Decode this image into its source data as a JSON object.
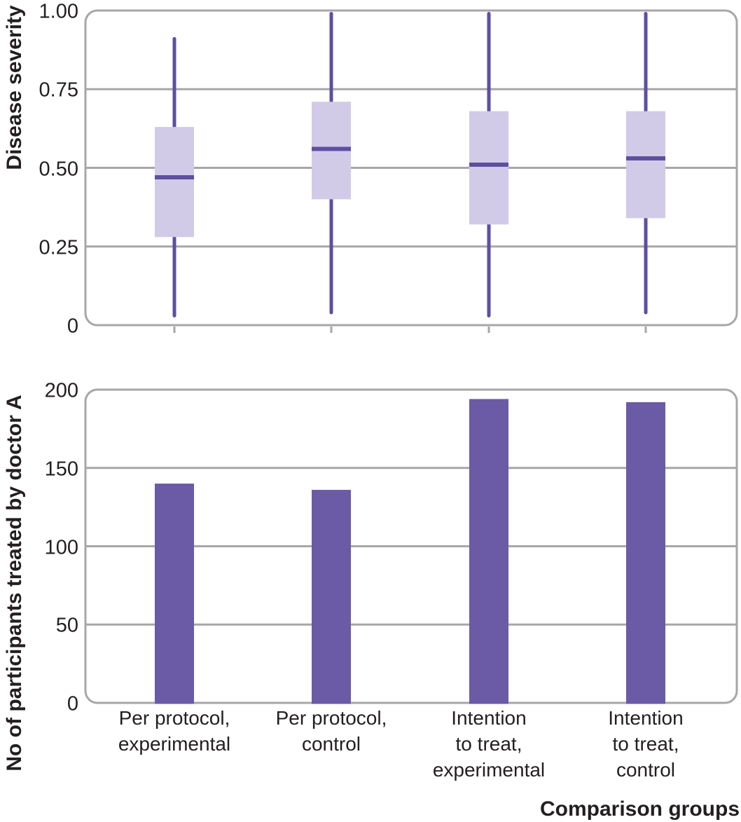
{
  "figure": {
    "x_axis_title": "Comparison groups",
    "colors": {
      "box_fill": "#d1cbe7",
      "box_line": "#5e4fa1",
      "bar_fill": "#6b5aa6",
      "grid": "#a8a6a9",
      "text": "#231f20"
    },
    "category_lines": [
      [
        "Per protocol,",
        "experimental"
      ],
      [
        "Per protocol,",
        "control"
      ],
      [
        "Intention",
        "to treat,",
        "experimental"
      ],
      [
        "Intention",
        "to treat,",
        "control"
      ]
    ]
  },
  "chart_data": [
    {
      "type": "boxplot",
      "title": "",
      "ylabel": "Disease severity",
      "xlabel": "",
      "ylim": [
        0,
        1
      ],
      "yticks": [
        0,
        0.25,
        0.5,
        0.75,
        1
      ],
      "ytick_labels": [
        "0",
        "0.25",
        "0.50",
        "0.75",
        "1.00"
      ],
      "grid": true,
      "legend": false,
      "categories": [
        "Per protocol, experimental",
        "Per protocol, control",
        "Intention to treat, experimental",
        "Intention to treat, control"
      ],
      "boxes": [
        {
          "whisker_low": 0.03,
          "q1": 0.28,
          "median": 0.47,
          "q3": 0.63,
          "whisker_high": 0.91
        },
        {
          "whisker_low": 0.04,
          "q1": 0.4,
          "median": 0.56,
          "q3": 0.71,
          "whisker_high": 0.99
        },
        {
          "whisker_low": 0.03,
          "q1": 0.32,
          "median": 0.51,
          "q3": 0.68,
          "whisker_high": 0.99
        },
        {
          "whisker_low": 0.04,
          "q1": 0.34,
          "median": 0.53,
          "q3": 0.68,
          "whisker_high": 0.99
        }
      ]
    },
    {
      "type": "bar",
      "title": "",
      "ylabel": "No of participants treated by doctor A",
      "xlabel": "Comparison groups",
      "ylim": [
        0,
        200
      ],
      "yticks": [
        0,
        50,
        100,
        150,
        200
      ],
      "ytick_labels": [
        "0",
        "50",
        "100",
        "150",
        "200"
      ],
      "grid": true,
      "legend": false,
      "categories": [
        "Per protocol, experimental",
        "Per protocol, control",
        "Intention to treat, experimental",
        "Intention to treat, control"
      ],
      "values": [
        140,
        136,
        194,
        192
      ]
    }
  ]
}
